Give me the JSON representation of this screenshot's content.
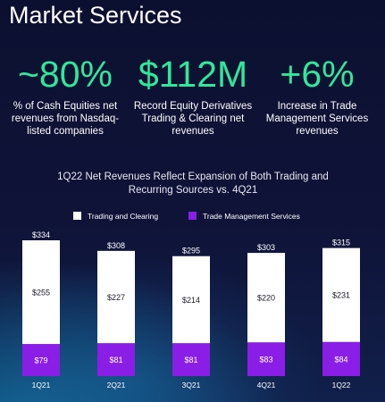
{
  "header": {
    "title": "Market Services"
  },
  "stats": [
    {
      "value": "~80%",
      "description": "% of Cash Equities net revenues from Nasdaq-listed companies"
    },
    {
      "value": "$112M",
      "description": "Record Equity Derivatives Trading & Clearing net revenues"
    },
    {
      "value": "+6%",
      "description": "Increase in Trade Management Services revenues"
    }
  ],
  "colors": {
    "accent_green": "#2fe89a",
    "trading_and_clearing": "#ffffff",
    "trade_management_services": "#8a1ee6"
  },
  "chart_data": {
    "type": "bar",
    "stacked": true,
    "title": "1Q22 Net Revenues Reflect Expansion of Both Trading and Recurring Sources vs. 4Q21",
    "xlabel": "",
    "ylabel": "",
    "categories": [
      "1Q21",
      "2Q21",
      "3Q21",
      "4Q21",
      "1Q22"
    ],
    "series": [
      {
        "name": "Trade Management Services",
        "values": [
          79,
          81,
          81,
          83,
          84
        ],
        "labels": [
          "$79",
          "$81",
          "$81",
          "$83",
          "$84"
        ],
        "color": "#8a1ee6"
      },
      {
        "name": "Trading and Clearing",
        "values": [
          255,
          227,
          214,
          220,
          231
        ],
        "labels": [
          "$255",
          "$227",
          "$214",
          "$220",
          "$231"
        ],
        "color": "#ffffff"
      }
    ],
    "totals": [
      334,
      308,
      295,
      303,
      315
    ],
    "total_labels": [
      "$334",
      "$308",
      "$295",
      "$303",
      "$315"
    ],
    "legend": [
      "Trading and Clearing",
      "Trade Management Services"
    ],
    "legend_position": "top",
    "grid": false,
    "ylim": [
      0,
      334
    ]
  }
}
